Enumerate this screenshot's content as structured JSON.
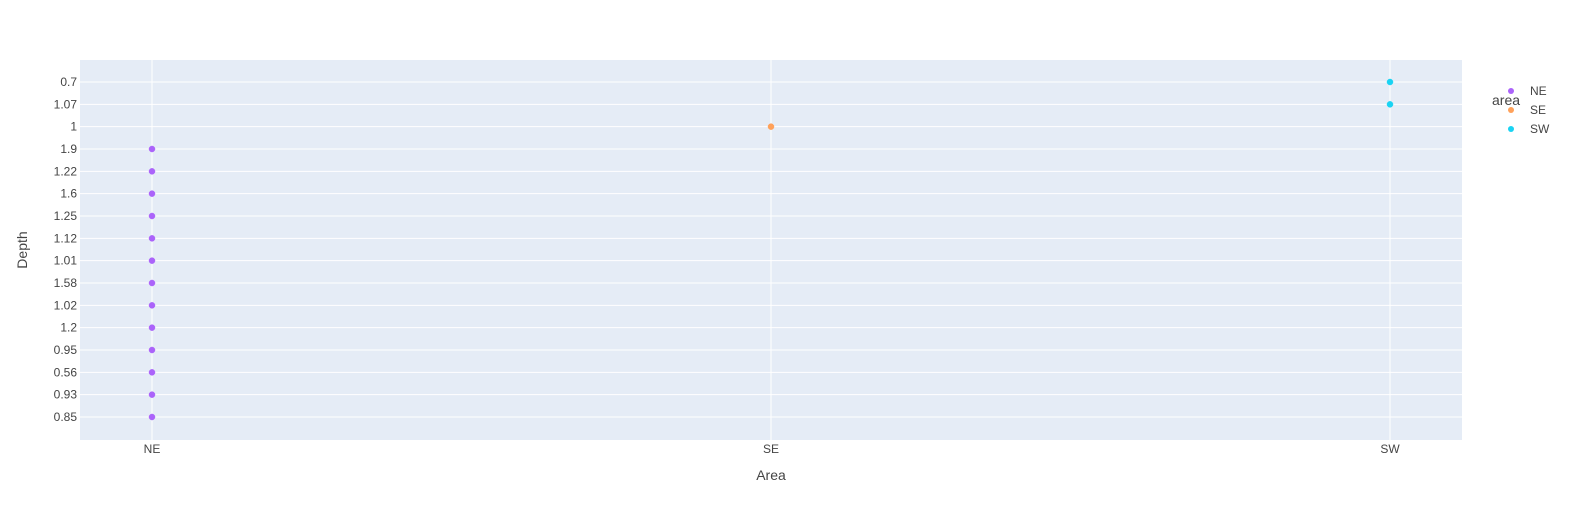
{
  "chart_data": {
    "type": "scatter",
    "xlabel": "Area",
    "ylabel": "Depth",
    "categories": [
      "NE",
      "SE",
      "SW"
    ],
    "y_categories": [
      "0.85",
      "0.93",
      "0.56",
      "0.95",
      "1.2",
      "1.02",
      "1.58",
      "1.01",
      "1.12",
      "1.25",
      "1.6",
      "1.22",
      "1.9",
      "1",
      "1.07",
      "0.7"
    ],
    "grid": true,
    "legend_title": "area",
    "legend_position": "right",
    "series": [
      {
        "name": "NE",
        "color": "#ab63fa",
        "points": [
          {
            "x": "NE",
            "y": "0.85"
          },
          {
            "x": "NE",
            "y": "0.93"
          },
          {
            "x": "NE",
            "y": "0.56"
          },
          {
            "x": "NE",
            "y": "0.95"
          },
          {
            "x": "NE",
            "y": "1.2"
          },
          {
            "x": "NE",
            "y": "1.02"
          },
          {
            "x": "NE",
            "y": "1.58"
          },
          {
            "x": "NE",
            "y": "1.01"
          },
          {
            "x": "NE",
            "y": "1.12"
          },
          {
            "x": "NE",
            "y": "1.25"
          },
          {
            "x": "NE",
            "y": "1.6"
          },
          {
            "x": "NE",
            "y": "1.22"
          },
          {
            "x": "NE",
            "y": "1.9"
          }
        ]
      },
      {
        "name": "SE",
        "color": "#ffa15a",
        "points": [
          {
            "x": "SE",
            "y": "1"
          }
        ]
      },
      {
        "name": "SW",
        "color": "#19d3f3",
        "points": [
          {
            "x": "SW",
            "y": "1.07"
          },
          {
            "x": "SW",
            "y": "0.7"
          }
        ]
      }
    ]
  }
}
